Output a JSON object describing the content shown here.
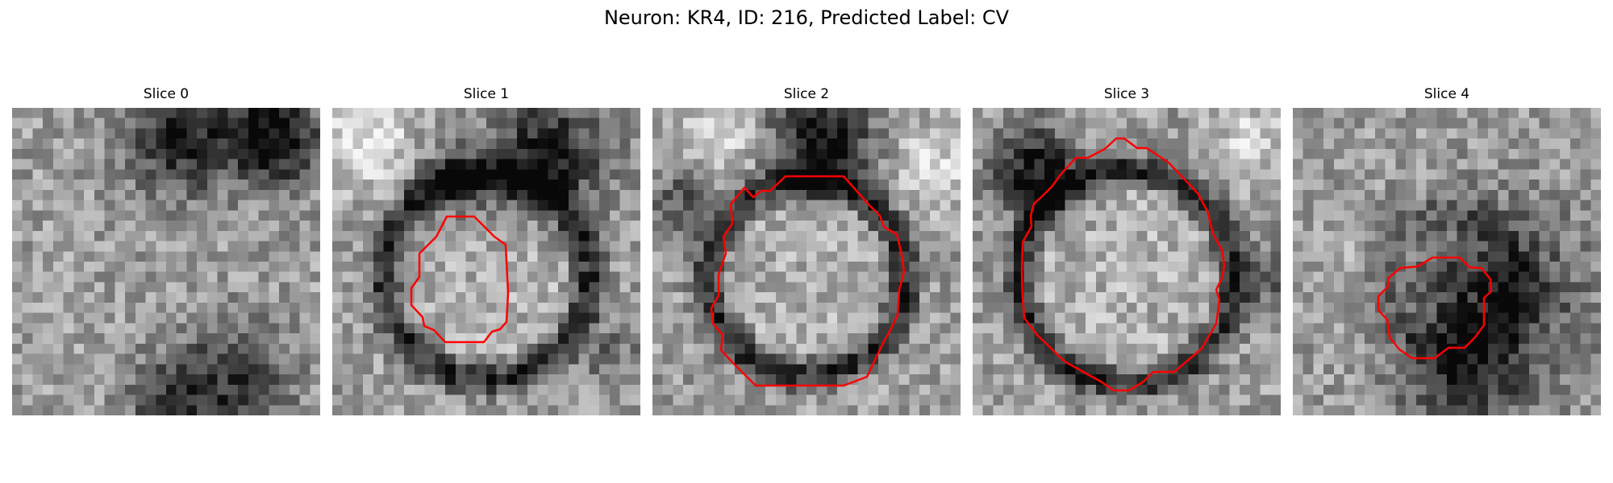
{
  "figure": {
    "title": "Neuron: KR4, ID: 216, Predicted Label: CV"
  },
  "colors": {
    "contour": "#ff0000"
  },
  "panels": [
    {
      "title": "Slice 0",
      "seed": 11,
      "has_contour": false,
      "ring": 0.0,
      "blobs": [
        [
          0.55,
          0.1,
          0.18,
          -0.5
        ],
        [
          0.85,
          0.1,
          0.15,
          -0.6
        ],
        [
          0.7,
          0.9,
          0.2,
          -0.4
        ],
        [
          0.5,
          0.95,
          0.12,
          -0.3
        ]
      ]
    },
    {
      "title": "Slice 1",
      "seed": 23,
      "has_contour": true,
      "ring": 0.55,
      "blobs": [
        [
          0.1,
          0.1,
          0.15,
          0.3
        ],
        [
          0.7,
          0.15,
          0.18,
          -0.55
        ],
        [
          0.4,
          0.25,
          0.12,
          -0.35
        ],
        [
          0.9,
          0.8,
          0.1,
          -0.2
        ]
      ]
    },
    {
      "title": "Slice 2",
      "seed": 37,
      "has_contour": true,
      "ring": 0.5,
      "blobs": [
        [
          0.55,
          0.1,
          0.16,
          -0.6
        ],
        [
          0.2,
          0.1,
          0.14,
          0.25
        ],
        [
          0.1,
          0.3,
          0.12,
          -0.3
        ],
        [
          0.9,
          0.2,
          0.12,
          0.25
        ]
      ]
    },
    {
      "title": "Slice 3",
      "seed": 41,
      "has_contour": true,
      "ring": 0.6,
      "blobs": [
        [
          0.2,
          0.2,
          0.14,
          -0.55
        ],
        [
          0.95,
          0.55,
          0.1,
          -0.3
        ],
        [
          0.9,
          0.1,
          0.12,
          0.2
        ]
      ]
    },
    {
      "title": "Slice 4",
      "seed": 53,
      "has_contour": true,
      "ring": 0.15,
      "blobs": [
        [
          0.65,
          0.6,
          0.28,
          -0.45
        ],
        [
          0.55,
          0.9,
          0.2,
          -0.35
        ],
        [
          0.2,
          0.5,
          0.1,
          0.1
        ]
      ]
    }
  ]
}
